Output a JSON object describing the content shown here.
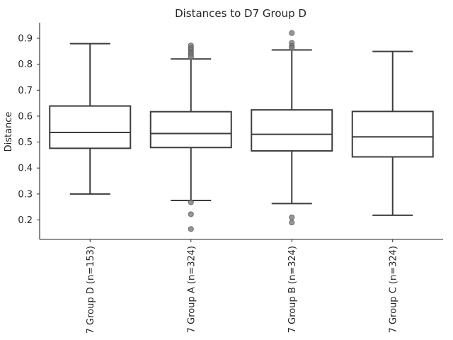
{
  "chart_data": {
    "type": "box",
    "title": "Distances to D7 Group D",
    "xlabel": "",
    "ylabel": "Distance",
    "ylim": [
      0.125,
      0.96
    ],
    "yticks": [
      0.2,
      0.3,
      0.4,
      0.5,
      0.6,
      0.7,
      0.8,
      0.9
    ],
    "ytick_labels": [
      "0.2",
      "0.3",
      "0.4",
      "0.5",
      "0.6",
      "0.7",
      "0.8",
      "0.9"
    ],
    "grid": false,
    "categories": [
      "7 Group D (n=153)",
      "7 Group A (n=324)",
      "7 Group B (n=324)",
      "7 Group C (n=324)"
    ],
    "boxes": [
      {
        "whisker_low": 0.3,
        "q1": 0.476,
        "median": 0.537,
        "q3": 0.639,
        "whisker_high": 0.879,
        "fliers": []
      },
      {
        "whisker_low": 0.275,
        "q1": 0.479,
        "median": 0.533,
        "q3": 0.617,
        "whisker_high": 0.82,
        "fliers": [
          0.872,
          0.862,
          0.855,
          0.848,
          0.842,
          0.835,
          0.828,
          0.268,
          0.222,
          0.165
        ]
      },
      {
        "whisker_low": 0.263,
        "q1": 0.466,
        "median": 0.53,
        "q3": 0.624,
        "whisker_high": 0.855,
        "fliers": [
          0.92,
          0.882,
          0.87,
          0.863,
          0.21,
          0.19
        ]
      },
      {
        "whisker_low": 0.218,
        "q1": 0.443,
        "median": 0.52,
        "q3": 0.618,
        "whisker_high": 0.849,
        "fliers": []
      }
    ],
    "colors": {
      "line": "#3d3d3d",
      "flier": "#7a7a7a",
      "text": "#262626"
    }
  }
}
